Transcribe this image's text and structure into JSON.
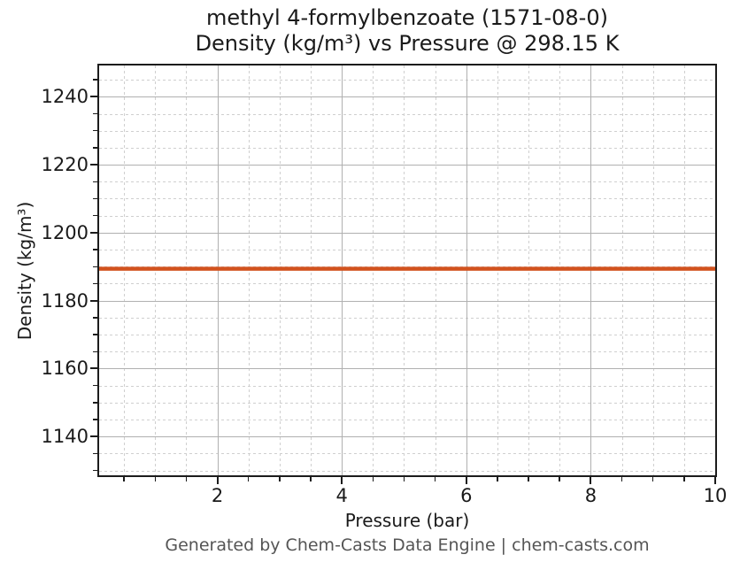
{
  "title": {
    "line1": "methyl 4-formylbenzoate (1571-08-0)",
    "line2": "Density (kg/m³) vs Pressure @ 298.15 K"
  },
  "footer": "Generated by Chem-Casts Data Engine | chem-casts.com",
  "chart_data": {
    "type": "line",
    "title": "methyl 4-formylbenzoate (1571-08-0)",
    "subtitle": "Density (kg/m³) vs Pressure @ 298.15 K",
    "xlabel": "Pressure (bar)",
    "ylabel": "Density (kg/m³)",
    "xlim": [
      0.1,
      10
    ],
    "ylim": [
      1128.6,
      1249.2
    ],
    "x_major_ticks": [
      2,
      4,
      6,
      8,
      10
    ],
    "x_minor_step": 0.5,
    "y_major_ticks": [
      1140,
      1160,
      1180,
      1200,
      1220,
      1240
    ],
    "y_minor_step": 5,
    "grid": {
      "major": "solid",
      "minor": "dashed",
      "visible": true
    },
    "legend": "none",
    "series": [
      {
        "name": "density",
        "color": "#d2521e",
        "x": [
          0.1,
          10
        ],
        "y": [
          1189.4,
          1189.4
        ]
      }
    ]
  },
  "colors": {
    "series_line": "#d2521e",
    "major_grid": "#b0b0b0",
    "minor_grid": "#cfcfcf",
    "axis": "#1c1c1c",
    "title_text": "#1a1a1a",
    "footer_text": "#555555",
    "background": "#ffffff"
  }
}
